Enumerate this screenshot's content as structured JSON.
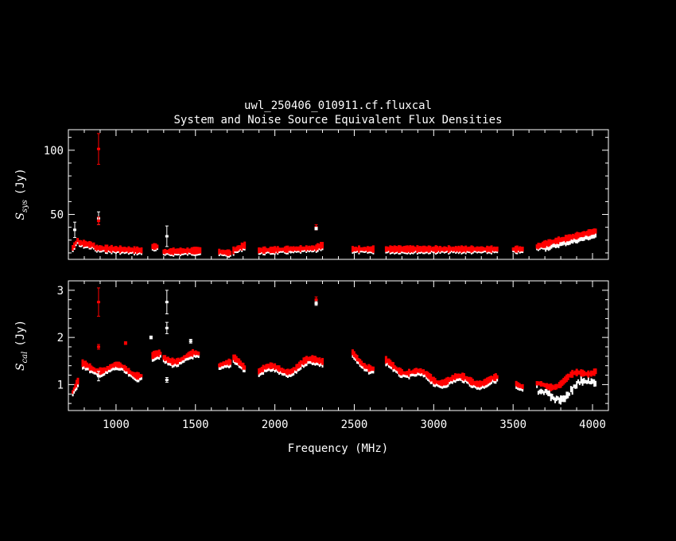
{
  "chart_data": {
    "type": "scatter",
    "title": "uwl_250406_010911.cf.fluxcal",
    "subtitle": "System and Noise Source Equivalent Flux Densities",
    "xlabel": "Frequency (MHz)",
    "xlim": [
      700,
      4100
    ],
    "xticks": [
      1000,
      1500,
      2000,
      2500,
      3000,
      3500,
      4000
    ],
    "grid": false,
    "series_colors": [
      "#ffffff",
      "#ff0000"
    ],
    "panels": [
      {
        "name": "top",
        "ylabel_main": "S",
        "ylabel_sub": "sys",
        "ylabel_unit": "(Jy)",
        "ylim": [
          15,
          116
        ],
        "yticks": [
          50,
          100
        ],
        "segments": [
          {
            "x0": 728,
            "x1": 758,
            "y0": 24,
            "y1": 30
          },
          {
            "x0": 770,
            "x1": 860,
            "y0": 28,
            "y1": 26
          },
          {
            "x0": 870,
            "x1": 1000,
            "y0": 24,
            "y1": 23
          },
          {
            "x0": 1000,
            "x1": 1160,
            "y0": 23,
            "y1": 22
          },
          {
            "x0": 1230,
            "x1": 1260,
            "y0": 25,
            "y1": 25
          },
          {
            "x0": 1300,
            "x1": 1530,
            "y0": 21,
            "y1": 22
          },
          {
            "x0": 1650,
            "x1": 1720,
            "y0": 21,
            "y1": 20
          },
          {
            "x0": 1740,
            "x1": 1810,
            "y0": 22,
            "y1": 26
          },
          {
            "x0": 1900,
            "x1": 2100,
            "y0": 22,
            "y1": 23
          },
          {
            "x0": 2100,
            "x1": 2270,
            "y0": 23,
            "y1": 24
          },
          {
            "x0": 2270,
            "x1": 2300,
            "y0": 25,
            "y1": 26
          },
          {
            "x0": 2490,
            "x1": 2530,
            "y0": 23,
            "y1": 23
          },
          {
            "x0": 2540,
            "x1": 2620,
            "y0": 23,
            "y1": 23
          },
          {
            "x0": 2700,
            "x1": 3400,
            "y0": 23,
            "y1": 23
          },
          {
            "x0": 3500,
            "x1": 3560,
            "y0": 23,
            "y1": 23
          },
          {
            "x0": 3650,
            "x1": 3760,
            "y0": 25,
            "y1": 29
          },
          {
            "x0": 3760,
            "x1": 4020,
            "y0": 29,
            "y1": 37
          }
        ],
        "errorbars": [
          {
            "x": 740,
            "y": 38,
            "err": 6,
            "color": "#ffffff"
          },
          {
            "x": 890,
            "y": 101,
            "err": 12,
            "color": "#ff0000"
          },
          {
            "x": 890,
            "y": 47,
            "err": 5,
            "color": "#ffffff"
          },
          {
            "x": 890,
            "y": 45,
            "err": 3,
            "color": "#ff0000"
          },
          {
            "x": 1320,
            "y": 33,
            "err": 8,
            "color": "#ffffff"
          },
          {
            "x": 2260,
            "y": 40,
            "err": 2,
            "color": "#ff0000"
          },
          {
            "x": 2260,
            "y": 39,
            "err": 1,
            "color": "#ffffff"
          }
        ]
      },
      {
        "name": "bottom",
        "ylabel_main": "S",
        "ylabel_sub": "cal",
        "ylabel_unit": "(Jy)",
        "ylim": [
          0.45,
          3.2
        ],
        "yticks": [
          1,
          2,
          3
        ],
        "segments": [
          {
            "x0": 728,
            "x1": 760,
            "y0": 0.82,
            "y1": 1.0
          },
          {
            "x0": 790,
            "x1": 1000,
            "y0": 1.38,
            "y1": 1.35
          },
          {
            "x0": 1000,
            "x1": 1160,
            "y0": 1.35,
            "y1": 1.25
          },
          {
            "x0": 1230,
            "x1": 1280,
            "y0": 1.55,
            "y1": 1.6
          },
          {
            "x0": 1300,
            "x1": 1520,
            "y0": 1.55,
            "y1": 1.6
          },
          {
            "x0": 1650,
            "x1": 1720,
            "y0": 1.45,
            "y1": 1.4
          },
          {
            "x0": 1740,
            "x1": 1810,
            "y0": 1.5,
            "y1": 1.4
          },
          {
            "x0": 1900,
            "x1": 2100,
            "y0": 1.3,
            "y1": 1.35
          },
          {
            "x0": 2100,
            "x1": 2300,
            "y0": 1.35,
            "y1": 1.55
          },
          {
            "x0": 2490,
            "x1": 2620,
            "y0": 1.65,
            "y1": 1.35
          },
          {
            "x0": 2700,
            "x1": 3000,
            "y0": 1.45,
            "y1": 1.12
          },
          {
            "x0": 3000,
            "x1": 3400,
            "y0": 1.12,
            "y1": 1.08
          },
          {
            "x0": 3520,
            "x1": 3560,
            "y0": 1.1,
            "y1": 1.0
          },
          {
            "x0": 3650,
            "x1": 3800,
            "y0": 0.95,
            "y1": 1.05
          },
          {
            "x0": 3800,
            "x1": 4020,
            "y0": 1.05,
            "y1": 1.35
          }
        ],
        "errorbars": [
          {
            "x": 890,
            "y": 2.75,
            "err": 0.3,
            "color": "#ff0000"
          },
          {
            "x": 890,
            "y": 1.8,
            "err": 0.05,
            "color": "#ff0000"
          },
          {
            "x": 890,
            "y": 1.18,
            "err": 0.1,
            "color": "#ffffff"
          },
          {
            "x": 1320,
            "y": 2.75,
            "err": 0.25,
            "color": "#ffffff"
          },
          {
            "x": 1320,
            "y": 2.2,
            "err": 0.12,
            "color": "#ffffff"
          },
          {
            "x": 1320,
            "y": 1.1,
            "err": 0.05,
            "color": "#ffffff"
          },
          {
            "x": 1060,
            "y": 1.88,
            "err": 0.03,
            "color": "#ff0000"
          },
          {
            "x": 1220,
            "y": 2.0,
            "err": 0.03,
            "color": "#ffffff"
          },
          {
            "x": 1470,
            "y": 1.92,
            "err": 0.04,
            "color": "#ffffff"
          },
          {
            "x": 2260,
            "y": 2.8,
            "err": 0.06,
            "color": "#ff0000"
          },
          {
            "x": 2260,
            "y": 2.72,
            "err": 0.04,
            "color": "#ffffff"
          }
        ]
      }
    ]
  }
}
